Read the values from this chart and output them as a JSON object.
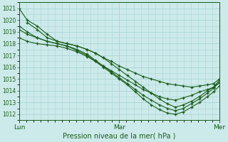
{
  "title": "Pression niveau de la mer( hPa )",
  "background_color": "#cdeaea",
  "grid_color": "#a8d4d4",
  "line_color": "#1a5c1a",
  "ylim": [
    1011.5,
    1021.5
  ],
  "yticks": [
    1012,
    1013,
    1014,
    1015,
    1016,
    1017,
    1018,
    1019,
    1020,
    1021
  ],
  "xtick_labels": [
    "Lun",
    "Mar",
    "Mer"
  ],
  "xtick_positions": [
    0,
    0.5,
    1.0
  ],
  "series": [
    {
      "x": [
        0.0,
        0.04,
        0.09,
        0.14,
        0.19,
        0.24,
        0.29,
        0.34,
        0.38,
        0.42,
        0.46,
        0.5,
        0.54,
        0.58,
        0.62,
        0.66,
        0.7,
        0.74,
        0.78,
        0.82,
        0.86,
        0.9,
        0.94,
        0.97,
        1.0
      ],
      "y": [
        1021.0,
        1020.0,
        1019.5,
        1018.8,
        1018.2,
        1018.0,
        1017.8,
        1017.5,
        1017.2,
        1016.8,
        1016.5,
        1016.1,
        1015.8,
        1015.5,
        1015.2,
        1015.0,
        1014.8,
        1014.6,
        1014.5,
        1014.4,
        1014.3,
        1014.4,
        1014.5,
        1014.6,
        1015.0
      ]
    },
    {
      "x": [
        0.0,
        0.04,
        0.09,
        0.14,
        0.19,
        0.24,
        0.29,
        0.34,
        0.38,
        0.42,
        0.46,
        0.5,
        0.54,
        0.58,
        0.62,
        0.66,
        0.7,
        0.74,
        0.78,
        0.82,
        0.86,
        0.9,
        0.94,
        0.97,
        1.0
      ],
      "y": [
        1019.5,
        1019.0,
        1018.5,
        1018.2,
        1018.0,
        1017.8,
        1017.5,
        1017.1,
        1016.6,
        1016.1,
        1015.6,
        1015.1,
        1014.6,
        1014.1,
        1013.6,
        1013.2,
        1012.8,
        1012.5,
        1012.3,
        1012.5,
        1012.9,
        1013.3,
        1013.8,
        1014.2,
        1014.7
      ]
    },
    {
      "x": [
        0.0,
        0.04,
        0.09,
        0.14,
        0.19,
        0.24,
        0.29,
        0.34,
        0.38,
        0.42,
        0.46,
        0.5,
        0.54,
        0.58,
        0.62,
        0.66,
        0.7,
        0.74,
        0.78,
        0.82,
        0.86,
        0.9,
        0.94,
        0.97,
        1.0
      ],
      "y": [
        1019.2,
        1018.8,
        1018.5,
        1018.2,
        1018.0,
        1017.8,
        1017.4,
        1017.0,
        1016.5,
        1016.0,
        1015.5,
        1015.0,
        1014.5,
        1013.9,
        1013.3,
        1012.8,
        1012.4,
        1012.1,
        1012.0,
        1012.2,
        1012.6,
        1013.0,
        1013.5,
        1013.9,
        1014.4
      ]
    },
    {
      "x": [
        0.0,
        0.04,
        0.09,
        0.14,
        0.19,
        0.24,
        0.29,
        0.34,
        0.38,
        0.42,
        0.46,
        0.5,
        0.54,
        0.58,
        0.62,
        0.66,
        0.7,
        0.74,
        0.78,
        0.82,
        0.86,
        0.9,
        0.94,
        0.97,
        1.0
      ],
      "y": [
        1018.5,
        1018.2,
        1018.0,
        1017.9,
        1017.8,
        1017.6,
        1017.3,
        1016.9,
        1016.5,
        1016.1,
        1015.7,
        1015.3,
        1014.9,
        1014.5,
        1014.1,
        1013.8,
        1013.5,
        1013.3,
        1013.2,
        1013.4,
        1013.6,
        1013.9,
        1014.1,
        1014.3,
        1014.7
      ]
    },
    {
      "x": [
        0.04,
        0.09,
        0.14,
        0.19,
        0.24,
        0.29,
        0.34,
        0.38,
        0.42,
        0.46,
        0.5,
        0.54,
        0.58,
        0.62,
        0.66,
        0.7,
        0.74,
        0.78,
        0.82,
        0.86,
        0.9,
        0.94,
        0.97,
        1.0
      ],
      "y": [
        1019.8,
        1019.2,
        1018.5,
        1018.2,
        1018.0,
        1017.8,
        1017.5,
        1017.2,
        1016.8,
        1016.3,
        1015.8,
        1015.3,
        1014.8,
        1014.3,
        1013.8,
        1013.3,
        1012.9,
        1012.6,
        1012.8,
        1013.1,
        1013.5,
        1014.0,
        1014.3,
        1014.9
      ]
    }
  ]
}
